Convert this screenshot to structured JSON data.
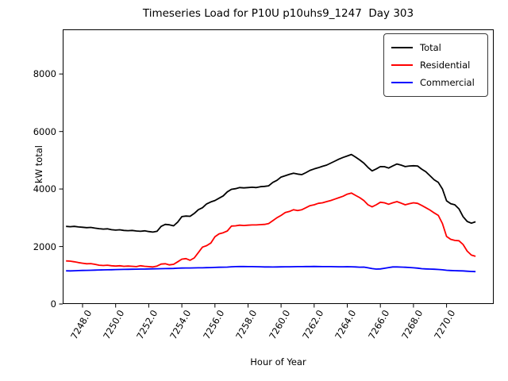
{
  "chart_data": {
    "type": "line",
    "title": "Timeseries Load for P10U p10uhs9_1247  Day 303",
    "xlabel": "Hour of Year",
    "ylabel": "kW total",
    "xlim": [
      7246.8,
      7272.85
    ],
    "ylim": [
      0,
      9552
    ],
    "x_ticks": [
      7248,
      7250,
      7252,
      7254,
      7256,
      7258,
      7260,
      7262,
      7264,
      7266,
      7268,
      7270
    ],
    "x_ticklabels": [
      "7248.0",
      "7250.0",
      "7252.0",
      "7254.0",
      "7256.0",
      "7258.0",
      "7260.0",
      "7262.0",
      "7264.0",
      "7266.0",
      "7268.0",
      "7270.0"
    ],
    "y_ticks": [
      0,
      2000,
      4000,
      6000,
      8000
    ],
    "y_ticklabels": [
      "0",
      "2000",
      "4000",
      "6000",
      "8000"
    ],
    "grid": false,
    "legend_position": "upper right",
    "x_start": 7247.0,
    "x_step": 0.25,
    "series": [
      {
        "name": "Total",
        "color": "#000000",
        "values": [
          2700,
          2690,
          2700,
          2680,
          2670,
          2655,
          2665,
          2640,
          2620,
          2605,
          2615,
          2585,
          2570,
          2580,
          2560,
          2550,
          2560,
          2540,
          2530,
          2545,
          2520,
          2500,
          2530,
          2700,
          2770,
          2755,
          2720,
          2850,
          3040,
          3060,
          3050,
          3150,
          3280,
          3350,
          3480,
          3550,
          3600,
          3680,
          3760,
          3900,
          3990,
          4010,
          4050,
          4040,
          4050,
          4060,
          4050,
          4080,
          4090,
          4110,
          4230,
          4300,
          4415,
          4460,
          4510,
          4550,
          4520,
          4500,
          4570,
          4650,
          4700,
          4740,
          4790,
          4830,
          4900,
          4970,
          5040,
          5100,
          5150,
          5200,
          5110,
          5010,
          4900,
          4750,
          4630,
          4700,
          4780,
          4775,
          4730,
          4800,
          4870,
          4830,
          4780,
          4800,
          4810,
          4800,
          4690,
          4600,
          4460,
          4320,
          4230,
          4000,
          3590,
          3490,
          3450,
          3310,
          3040,
          2870,
          2810,
          2860
        ]
      },
      {
        "name": "Residential",
        "color": "#ff0000",
        "values": [
          1500,
          1490,
          1470,
          1440,
          1420,
          1400,
          1405,
          1380,
          1350,
          1340,
          1350,
          1330,
          1320,
          1330,
          1310,
          1320,
          1310,
          1300,
          1330,
          1310,
          1300,
          1290,
          1320,
          1390,
          1400,
          1360,
          1380,
          1470,
          1560,
          1580,
          1520,
          1600,
          1790,
          1980,
          2030,
          2120,
          2340,
          2440,
          2480,
          2540,
          2710,
          2720,
          2740,
          2730,
          2740,
          2750,
          2750,
          2760,
          2770,
          2800,
          2900,
          3000,
          3080,
          3180,
          3220,
          3280,
          3250,
          3280,
          3350,
          3420,
          3450,
          3500,
          3520,
          3560,
          3600,
          3650,
          3700,
          3750,
          3820,
          3860,
          3780,
          3700,
          3600,
          3450,
          3380,
          3450,
          3540,
          3520,
          3470,
          3520,
          3560,
          3510,
          3450,
          3490,
          3520,
          3500,
          3430,
          3350,
          3270,
          3170,
          3080,
          2800,
          2350,
          2250,
          2210,
          2200,
          2070,
          1840,
          1700,
          1660
        ]
      },
      {
        "name": "Commercial",
        "color": "#0000ff",
        "values": [
          1155,
          1150,
          1158,
          1163,
          1168,
          1170,
          1174,
          1178,
          1183,
          1188,
          1190,
          1194,
          1198,
          1200,
          1204,
          1206,
          1210,
          1212,
          1214,
          1216,
          1220,
          1222,
          1226,
          1228,
          1230,
          1234,
          1238,
          1244,
          1250,
          1252,
          1254,
          1256,
          1258,
          1260,
          1264,
          1268,
          1274,
          1278,
          1280,
          1284,
          1294,
          1300,
          1302,
          1304,
          1300,
          1300,
          1298,
          1295,
          1290,
          1288,
          1286,
          1290,
          1292,
          1294,
          1296,
          1298,
          1300,
          1300,
          1302,
          1304,
          1305,
          1302,
          1300,
          1300,
          1300,
          1298,
          1296,
          1296,
          1298,
          1294,
          1290,
          1282,
          1285,
          1258,
          1232,
          1216,
          1220,
          1242,
          1268,
          1288,
          1290,
          1285,
          1278,
          1270,
          1260,
          1248,
          1228,
          1220,
          1215,
          1210,
          1200,
          1190,
          1172,
          1166,
          1160,
          1155,
          1150,
          1140,
          1132,
          1125
        ]
      }
    ]
  }
}
